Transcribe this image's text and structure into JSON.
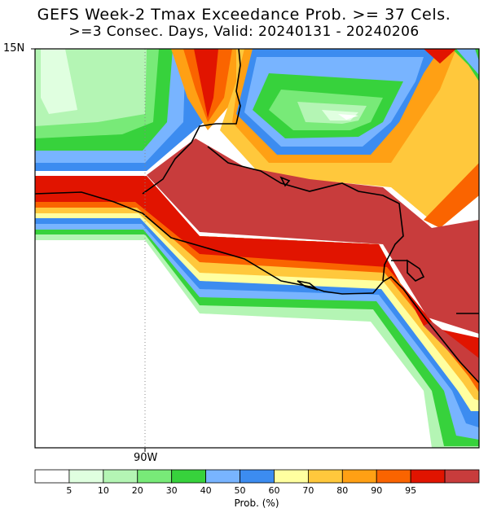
{
  "title": "GEFS Week-2 Tmax Exceedance Prob. >= 37 Cels.",
  "subtitle": ">=3 Consec. Days, Valid: 20240131 - 20240206",
  "map": {
    "lat_label": "15N",
    "lon_label": "90W",
    "region": "Central America (Guatemala, El Salvador, Honduras, Nicaragua Pacific coast)"
  },
  "colorbar": {
    "title": "Prob. (%)",
    "ticks": [
      "5",
      "10",
      "20",
      "30",
      "40",
      "50",
      "60",
      "70",
      "80",
      "90",
      "95"
    ],
    "colors": [
      "#ffffff",
      "#e0ffe0",
      "#b4f5b4",
      "#78ea78",
      "#37d23c",
      "#78b4ff",
      "#3c8cf0",
      "#ffffa0",
      "#ffc83c",
      "#ffa014",
      "#fa6400",
      "#e11400",
      "#c83c3c"
    ]
  }
}
